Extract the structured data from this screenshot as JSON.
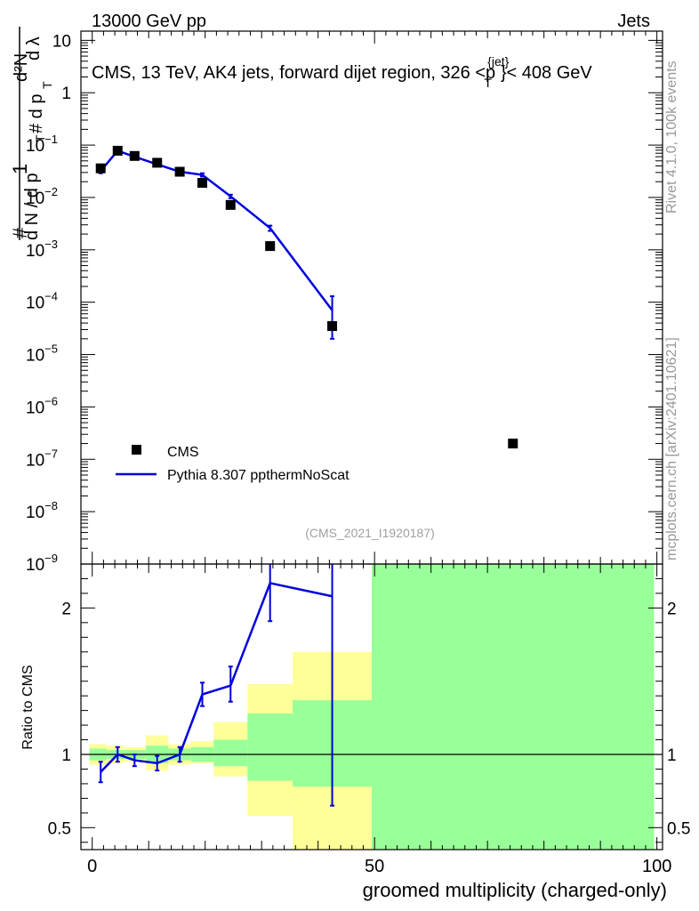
{
  "header": {
    "energy_label": "13000 GeV pp",
    "category_label": "Jets",
    "plot_title": "CMS, 13 TeV, AK4 jets, forward dijet region, 326 <p",
    "plot_title_sup": "{jet}",
    "plot_title_sub": "T",
    "plot_title_end": "}< 408 GeV",
    "side_label_top": "Rivet 4.1.0,  100k events",
    "side_label_bottom": "mcplots.cern.ch [arXiv:2401.10621]",
    "analysis_id": "(CMS_2021_I1920187)"
  },
  "chart_data": [
    {
      "type": "scatter",
      "title": "CMS, 13 TeV, AK4 jets, forward dijet region, 326 <p_T^{jet}< 408 GeV",
      "ylabel": "1/(dN/dp_T) d²N/(dp_T dλ)",
      "y_axis_parts": {
        "main": "#",
        "one": "1",
        "numer": "d N / d p",
        "numer_sub": "T",
        "top": "d²N",
        "top_sub": "# d p",
        "top_sub2": "T",
        "dl": "d λ"
      },
      "yscale": "log",
      "ylim": [
        1e-09,
        15
      ],
      "xlim": [
        -2,
        101
      ],
      "y_ticks": [
        {
          "value": 10,
          "label": "10"
        },
        {
          "value": 1,
          "label": "1"
        },
        {
          "value": 0.1,
          "label": "10",
          "exp": "−1"
        },
        {
          "value": 0.01,
          "label": "10",
          "exp": "−2"
        },
        {
          "value": 0.001,
          "label": "10",
          "exp": "−3"
        },
        {
          "value": 0.0001,
          "label": "10",
          "exp": "−4"
        },
        {
          "value": 1e-05,
          "label": "10",
          "exp": "−5"
        },
        {
          "value": 1e-06,
          "label": "10",
          "exp": "−6"
        },
        {
          "value": 1e-07,
          "label": "10",
          "exp": "−7"
        },
        {
          "value": 1e-08,
          "label": "10",
          "exp": "−8"
        },
        {
          "value": 1e-09,
          "label": "10",
          "exp": "−9"
        }
      ],
      "legend": [
        {
          "name": "CMS",
          "color": "#000000",
          "marker": "square"
        },
        {
          "name": "Pythia 8.307 ppthermNoScat",
          "color": "#0000dd",
          "marker": "line"
        }
      ],
      "legend_position": "bottom-left",
      "series": [
        {
          "name": "CMS",
          "points": [
            {
              "x": 1.5,
              "y": 0.036
            },
            {
              "x": 4.5,
              "y": 0.078
            },
            {
              "x": 7.5,
              "y": 0.062
            },
            {
              "x": 11.5,
              "y": 0.046
            },
            {
              "x": 15.5,
              "y": 0.031
            },
            {
              "x": 19.5,
              "y": 0.019
            },
            {
              "x": 24.5,
              "y": 0.0072
            },
            {
              "x": 31.5,
              "y": 0.00118
            },
            {
              "x": 42.5,
              "y": 3.5e-05
            },
            {
              "x": 74.5,
              "y": 2e-07
            }
          ]
        },
        {
          "name": "Pythia 8.307 ppthermNoScat",
          "points": [
            {
              "x": 1.5,
              "y": 0.032,
              "lo": 0.029,
              "hi": 0.035
            },
            {
              "x": 4.5,
              "y": 0.078,
              "lo": 0.074,
              "hi": 0.082
            },
            {
              "x": 7.5,
              "y": 0.06
            },
            {
              "x": 11.5,
              "y": 0.043
            },
            {
              "x": 15.5,
              "y": 0.031
            },
            {
              "x": 19.5,
              "y": 0.027,
              "lo": 0.025,
              "hi": 0.029
            },
            {
              "x": 24.5,
              "y": 0.0105,
              "lo": 0.0097,
              "hi": 0.0113
            },
            {
              "x": 31.5,
              "y": 0.0026,
              "lo": 0.0023,
              "hi": 0.0029
            },
            {
              "x": 42.5,
              "y": 7e-05,
              "lo": 2e-05,
              "hi": 0.00013
            }
          ]
        }
      ]
    },
    {
      "type": "line",
      "ylabel": "Ratio to CMS",
      "xlabel": "groomed multiplicity (charged-only)",
      "xlim": [
        -2,
        101
      ],
      "ylim": [
        0.35,
        2.3
      ],
      "x_ticks": [
        0,
        50,
        100
      ],
      "y_ticks": [
        {
          "value": 0.5,
          "label": "0.5"
        },
        {
          "value": 1,
          "label": "1"
        },
        {
          "value": 2,
          "label": "2"
        }
      ],
      "uncertainty_bands": [
        {
          "x0": -0.5,
          "x1": 2.5,
          "green": [
            0.96,
            1.04
          ],
          "yellow": [
            0.93,
            1.07
          ]
        },
        {
          "x0": 2.5,
          "x1": 5.5,
          "green": [
            0.97,
            1.03
          ],
          "yellow": [
            0.94,
            1.06
          ]
        },
        {
          "x0": 5.5,
          "x1": 9.5,
          "green": [
            0.97,
            1.03
          ],
          "yellow": [
            0.95,
            1.05
          ]
        },
        {
          "x0": 9.5,
          "x1": 13.5,
          "green": [
            0.94,
            1.06
          ],
          "yellow": [
            0.89,
            1.13
          ]
        },
        {
          "x0": 13.5,
          "x1": 17.5,
          "green": [
            0.96,
            1.04
          ],
          "yellow": [
            0.93,
            1.07
          ]
        },
        {
          "x0": 17.5,
          "x1": 21.5,
          "green": [
            0.95,
            1.05
          ],
          "yellow": [
            0.94,
            1.09
          ]
        },
        {
          "x0": 21.5,
          "x1": 27.5,
          "green": [
            0.92,
            1.1
          ],
          "yellow": [
            0.85,
            1.22
          ]
        },
        {
          "x0": 27.5,
          "x1": 35.5,
          "green": [
            0.82,
            1.28
          ],
          "yellow": [
            0.58,
            1.48
          ]
        },
        {
          "x0": 35.5,
          "x1": 49.5,
          "green": [
            0.78,
            1.37
          ],
          "yellow": [
            0.35,
            1.7
          ]
        },
        {
          "x0": 49.5,
          "x1": 99.5,
          "green": [
            0.35,
            2.3
          ],
          "yellow": [
            0.35,
            2.3
          ]
        }
      ],
      "series": [
        {
          "name": "Pythia 8.307 ppthermNoScat",
          "points": [
            {
              "x": 1.5,
              "y": 0.88,
              "lo": 0.81,
              "hi": 0.95
            },
            {
              "x": 4.5,
              "y": 1.0,
              "lo": 0.95,
              "hi": 1.05
            },
            {
              "x": 7.5,
              "y": 0.96,
              "lo": 0.92,
              "hi": 1.0
            },
            {
              "x": 11.5,
              "y": 0.94,
              "lo": 0.89,
              "hi": 0.99
            },
            {
              "x": 15.5,
              "y": 1.0,
              "lo": 0.95,
              "hi": 1.05
            },
            {
              "x": 19.5,
              "y": 1.41,
              "lo": 1.33,
              "hi": 1.49
            },
            {
              "x": 24.5,
              "y": 1.47,
              "lo": 1.36,
              "hi": 1.6
            },
            {
              "x": 31.5,
              "y": 2.17,
              "lo": 1.91,
              "hi": 2.3
            },
            {
              "x": 42.5,
              "y": 2.08,
              "lo": 0.65,
              "hi": 2.3
            }
          ]
        }
      ]
    }
  ]
}
